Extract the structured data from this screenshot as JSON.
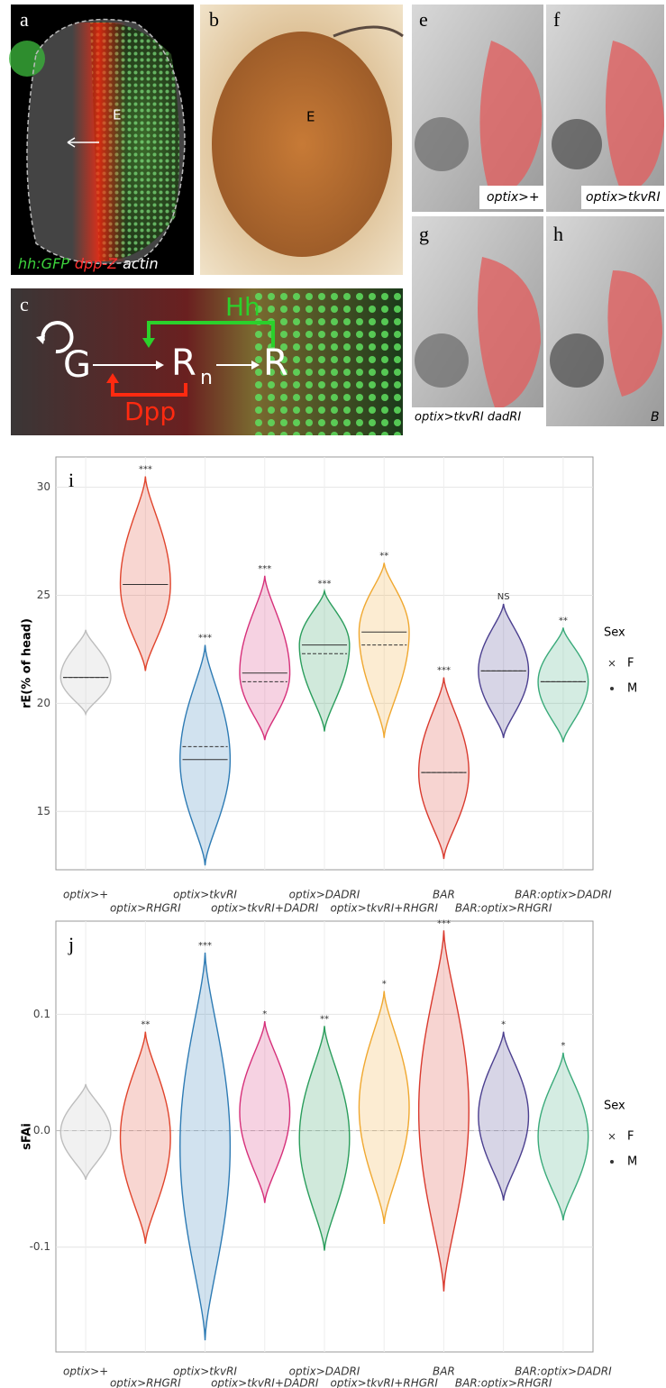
{
  "figure_panels": {
    "a": {
      "letter": "a",
      "region": "E",
      "stain_1": "hh:GFP",
      "stain_2": "dpp-Z",
      "stain_3": "actin"
    },
    "b": {
      "letter": "b",
      "region": "E"
    },
    "c": {
      "letter": "c",
      "node_g": "G",
      "node_rn": "R",
      "node_rn_sub": "n",
      "node_r": "R",
      "signal_hh": "Hh",
      "signal_dpp": "Dpp"
    },
    "e": {
      "letter": "e",
      "genotype": "optix>+"
    },
    "f": {
      "letter": "f",
      "genotype": "optix>tkvRI"
    },
    "g": {
      "letter": "g",
      "genotype": "optix>tkvRI dadRI"
    },
    "h": {
      "letter": "h",
      "genotype": "B"
    }
  },
  "chart_data": [
    {
      "type": "violin",
      "panel_label": "i",
      "y_label": "rE(% of head)",
      "categories": [
        "optix>+",
        "optix>RHGRI",
        "optix>tkvRI",
        "optix>tkvRI+DADRI",
        "optix>DADRI",
        "optix>tkvRI+RHGRI",
        "BAR",
        "BAR:optix>RHGRI",
        "BAR:optix>DADRI"
      ],
      "colors": [
        "#bdbdbd",
        "#e0442c",
        "#2e7bb4",
        "#d6307a",
        "#2a9d5c",
        "#f0a830",
        "#d93a2e",
        "#4b3f8f",
        "#3aaa7a"
      ],
      "mins": [
        19.5,
        21.5,
        12.5,
        18.3,
        18.7,
        18.4,
        12.8,
        18.4,
        18.2
      ],
      "maxs": [
        23.4,
        30.5,
        22.7,
        25.9,
        25.2,
        26.5,
        21.2,
        24.6,
        23.5
      ],
      "medians": [
        21.2,
        25.5,
        17.4,
        21.4,
        22.7,
        23.3,
        16.8,
        21.5,
        21.0
      ],
      "means": [
        21.2,
        25.5,
        18.0,
        21.0,
        22.3,
        22.7,
        16.8,
        21.5,
        21.0
      ],
      "significance": [
        null,
        "***",
        "***",
        "***",
        "***",
        "**",
        "***",
        "NS",
        "**"
      ],
      "ylim": [
        12.3,
        31.4
      ],
      "yticks": [
        15,
        20,
        25,
        30
      ],
      "grid": true,
      "legend_title": "Sex",
      "legend_entries": [
        "F",
        "M"
      ],
      "legend_position": "right"
    },
    {
      "type": "violin",
      "panel_label": "j",
      "y_label": "sFAi",
      "categories": [
        "optix>+",
        "optix>RHGRI",
        "optix>tkvRI",
        "optix>tkvRI+DADRI",
        "optix>DADRI",
        "optix>tkvRI+RHGRI",
        "BAR",
        "BAR:optix>RHGRI",
        "BAR:optix>DADRI"
      ],
      "colors": [
        "#bdbdbd",
        "#e0442c",
        "#2e7bb4",
        "#d6307a",
        "#2a9d5c",
        "#f0a830",
        "#d93a2e",
        "#4b3f8f",
        "#3aaa7a"
      ],
      "mins": [
        -0.042,
        -0.097,
        -0.18,
        -0.062,
        -0.103,
        -0.08,
        -0.138,
        -0.06,
        -0.077
      ],
      "maxs": [
        0.04,
        0.085,
        0.153,
        0.094,
        0.09,
        0.12,
        0.172,
        0.085,
        0.067
      ],
      "significance": [
        null,
        "**",
        "***",
        "*",
        "**",
        "*",
        "***",
        "*",
        "*"
      ],
      "hline": 0,
      "ylim": [
        -0.19,
        0.18
      ],
      "yticks": [
        -0.1,
        {
          "value": 0,
          "label": "0.0"
        },
        0.1
      ],
      "grid": true,
      "legend_title": "Sex",
      "legend_entries": [
        "F",
        "M"
      ],
      "legend_position": "right"
    }
  ]
}
